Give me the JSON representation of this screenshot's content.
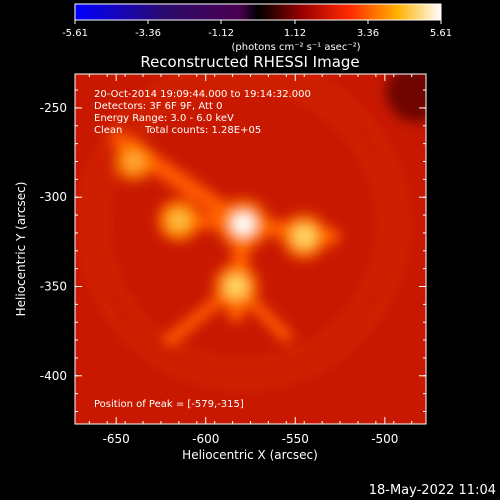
{
  "colorbar": {
    "ticks": [
      "-5.61",
      "-3.36",
      "-1.12",
      "1.12",
      "3.36",
      "5.61"
    ],
    "unit_label": "(photons cm⁻² s⁻¹ asec⁻²)",
    "range": [
      -5.61,
      5.61
    ]
  },
  "chart_data": {
    "type": "heatmap",
    "title": "Reconstructed RHESSI Image",
    "xlabel": "Heliocentric X (arcsec)",
    "ylabel": "Heliocentric Y (arcsec)",
    "xlim": [
      -673,
      -477
    ],
    "ylim": [
      -427,
      -231
    ],
    "x_ticks": [
      "-650",
      "-600",
      "-550",
      "-500"
    ],
    "y_ticks": [
      "-250",
      "-300",
      "-350",
      "-400"
    ],
    "x_tick_values": [
      -650,
      -600,
      -550,
      -500
    ],
    "y_tick_values": [
      -250,
      -300,
      -350,
      -400
    ],
    "colormap": "hot",
    "sources": [
      {
        "x": -579,
        "y": -315,
        "intensity": 5.61
      },
      {
        "x": -545,
        "y": -322,
        "intensity": 4.4
      },
      {
        "x": -583,
        "y": -350,
        "intensity": 4.3
      },
      {
        "x": -615,
        "y": -313,
        "intensity": 3.6
      },
      {
        "x": -640,
        "y": -280,
        "intensity": 2.8
      }
    ],
    "annotations": {
      "time": "20-Oct-2014 19:09:44.000 to 19:14:32.000",
      "detectors": "Detectors: 3F 6F 9F, Att 0",
      "energy": "Energy Range: 3.0 - 6.0 keV",
      "method": "Clean",
      "counts": "Total counts: 1.28E+05",
      "peak": "Position of Peak = [-579,-315]"
    }
  },
  "footer": {
    "timestamp": "18-May-2022 11:04"
  }
}
